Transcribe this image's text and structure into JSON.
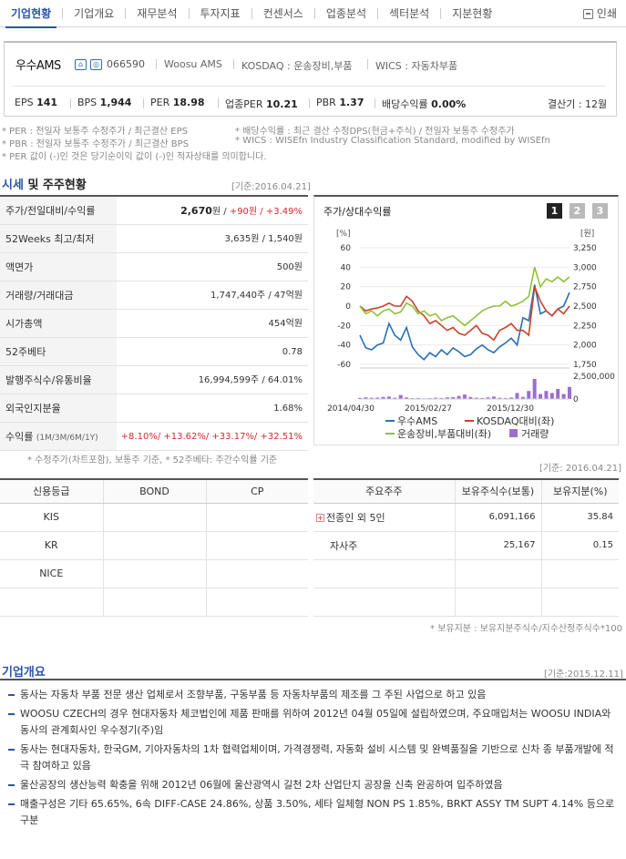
{
  "tabs": [
    "기업현황",
    "기업개요",
    "재무분석",
    "투자지표",
    "컨센서스",
    "업종분석",
    "섹터분석",
    "지분현황"
  ],
  "print_label": "인쇄",
  "company": {
    "name": "우수AMS",
    "code": "066590",
    "eng_name": "Woosu AMS",
    "kosdaq": "KOSDAQ : 운송장비,부품",
    "wics": "WICS : 자동차부품"
  },
  "stats": [
    {
      "label": "EPS",
      "value": "141"
    },
    {
      "label": "BPS",
      "value": "1,944"
    },
    {
      "label": "PER",
      "value": "18.98"
    },
    {
      "label": "업종PER",
      "value": "10.21"
    },
    {
      "label": "PBR",
      "value": "1.37"
    },
    {
      "label": "배당수익률",
      "value": "0.00%"
    }
  ],
  "fiscal": "결산기 : 12월",
  "notes": {
    "per": "* PER : 전일자 보통주 수정주가 / 최근결산 EPS",
    "div": "* 배당수익률 : 최근 결산 수정DPS(현금+주식) / 전일자 보통주 수정주가",
    "pbr": "* PBR : 전일자 보통주 수정주가 / 최근결산 BPS",
    "wics": "* WICS : WISEfn Industry Classification Standard, modified by WISEfn",
    "neg": "* PER 값이 (-)인 것은 당기순이익 값이 (-)인 적자상태를 의미합니다."
  },
  "price_section": {
    "title_blue": "시세",
    "title_rest": " 및 주주현황",
    "basis": "[기준:2016.04.21]",
    "rows": [
      {
        "label": "주가/전일대비/수익률",
        "value": "2,670",
        "unit": "원 / ",
        "chg": "+90원 / +3.49%"
      },
      {
        "label": "52Weeks 최고/최저",
        "value": "3,635원 / 1,540원"
      },
      {
        "label": "액면가",
        "value": "500원"
      },
      {
        "label": "거래량/거래대금",
        "value": "1,747,440주 / 47억원"
      },
      {
        "label": "시가총액",
        "value": "454억원"
      },
      {
        "label": "52주베타",
        "value": "0.78"
      },
      {
        "label": "발행주식수/유통비율",
        "value": "16,994,599주 / 64.01%"
      },
      {
        "label": "외국인지분율",
        "value": "1.68%"
      },
      {
        "label": "수익률",
        "label_small": "(1M/3M/6M/1Y)",
        "value": "+8.10%/ +13.62%/ +33.17%/ +32.51%"
      }
    ],
    "footnote": "* 수정주가(차트포함), 보통주 기준, * 52주베타: 주간수익률 기준"
  },
  "chart_panel": {
    "title": "주가/상대수익률",
    "buttons": [
      "1",
      "2",
      "3"
    ],
    "left_unit": "[%]",
    "right_unit": "[원]"
  },
  "chart_data": {
    "type": "line",
    "x_ticks": [
      "2014/04/30",
      "2015/02/27",
      "2015/12/30"
    ],
    "y_left_ticks": [
      "60",
      "40",
      "20",
      "0",
      "-20",
      "-40",
      "-60"
    ],
    "y_right_ticks": [
      "3,250",
      "3,000",
      "2,750",
      "2,500",
      "2,250",
      "2,000",
      "1,750"
    ],
    "volume_ticks": [
      "2,500,000",
      "0"
    ],
    "ylim_left": [
      -60,
      60
    ],
    "ylim_right": [
      1750,
      3250
    ],
    "series": [
      {
        "name": "우수AMS",
        "color": "#2a6fb8",
        "values": [
          -30,
          -43,
          -45,
          -40,
          -38,
          -18,
          -30,
          -35,
          -22,
          -42,
          -50,
          -55,
          -48,
          -52,
          -45,
          -50,
          -43,
          -47,
          -52,
          -50,
          -44,
          -40,
          -45,
          -48,
          -42,
          -38,
          -33,
          -40,
          -12,
          -15,
          22,
          -8,
          -5,
          -10,
          -3,
          0,
          14
        ]
      },
      {
        "name": "KOSDAQ대비(좌)",
        "color": "#c9442a",
        "values": [
          0,
          -5,
          -3,
          -2,
          0,
          3,
          0,
          0,
          10,
          5,
          -5,
          -10,
          -18,
          -15,
          -20,
          -25,
          -22,
          -28,
          -30,
          -25,
          -20,
          -28,
          -30,
          -35,
          -25,
          -22,
          -18,
          -25,
          -25,
          -30,
          20,
          5,
          -5,
          -10,
          -3,
          -8,
          0
        ]
      },
      {
        "name": "운송장비,부품대비(좌)",
        "color": "#8fc23a",
        "values": [
          0,
          -8,
          -5,
          -10,
          -5,
          -3,
          -8,
          -6,
          3,
          0,
          -8,
          -5,
          -10,
          -8,
          -15,
          -12,
          -10,
          -15,
          -20,
          -15,
          -10,
          -5,
          -2,
          0,
          0,
          5,
          0,
          2,
          5,
          10,
          40,
          20,
          28,
          25,
          30,
          25,
          30
        ]
      }
    ],
    "volume": [
      5,
      8,
      6,
      7,
      10,
      12,
      6,
      20,
      8,
      4,
      5,
      3,
      4,
      6,
      5,
      8,
      9,
      15,
      22,
      10,
      6,
      5,
      8,
      12,
      6,
      5,
      7,
      30,
      10,
      40,
      100,
      25,
      40,
      30,
      50,
      25,
      60
    ],
    "legend": [
      {
        "name": "우수AMS",
        "color": "#2a6fb8",
        "kind": "line"
      },
      {
        "name": "KOSDAQ대비(좌)",
        "color": "#c9442a",
        "kind": "line"
      },
      {
        "name": "운송장비,부품대비(좌)",
        "color": "#8fc23a",
        "kind": "line"
      },
      {
        "name": "거래량",
        "color": "#9b6fce",
        "kind": "box"
      }
    ]
  },
  "credit_table": {
    "basis": "[기준: 2016.04.21]",
    "headers": [
      "신용등급",
      "BOND",
      "CP"
    ],
    "rows": [
      [
        "KIS",
        "",
        ""
      ],
      [
        "KR",
        "",
        ""
      ],
      [
        "NICE",
        "",
        ""
      ],
      [
        "",
        "",
        ""
      ]
    ]
  },
  "holder_table": {
    "headers": [
      "주요주주",
      "보유주식수(보통)",
      "보유지분(%)"
    ],
    "rows": [
      [
        "전종인 외 5인",
        "6,091,166",
        "35.84"
      ],
      [
        "자사주",
        "25,167",
        "0.15"
      ],
      [
        "",
        "",
        ""
      ],
      [
        "",
        "",
        ""
      ]
    ],
    "footnote": "* 보유지분 : 보유지분주식수/지수산정주식수*100"
  },
  "overview": {
    "title": "기업개요",
    "basis": "[기준:2015.12.11]",
    "items": [
      "동사는 자동차 부품 전문 생산 업체로서 조향부품, 구동부품 등 자동차부품의 제조를 그 주된 사업으로 하고 있음",
      "WOOSU CZECH의 경우 현대자동차 체코법인에 제품 판매를 위하여 2012년 04월 05일에 설립하였으며, 주요매입처는 WOOSU INDIA와 동사의 관계회사인 우수정기(주)임",
      "동사는 현대자동차, 한국GM, 기아자동차의 1차 협력업체이며, 가격경쟁력, 자동화 설비 시스템 및 완벽품질을 기반으로 신차 종 부품개발에 적극 참여하고 있음",
      "울산공장의 생산능력 확충을 위해 2012년 06월에 울산광역시 길천 2차 산업단지 공장을 신축 완공하여 입주하였음",
      "매출구성은 기타 65.65%, 6속 DIFF-CASE 24.86%, 상품 3.50%, 세타 일체형 NON PS 1.85%, BRKT ASSY TM SUPT 4.14% 등으로 구분"
    ]
  }
}
